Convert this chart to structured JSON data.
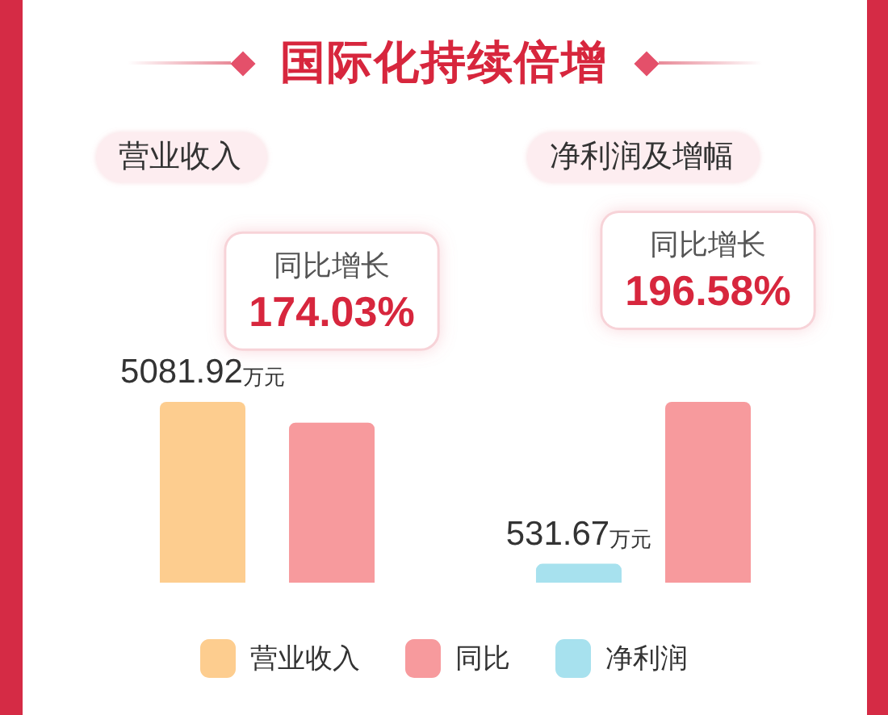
{
  "chart_data": {
    "type": "bar",
    "title": "国际化持续倍增",
    "categories": [
      "营业收入",
      "净利润及增幅"
    ],
    "tick_labels": "x",
    "legend": "bottom",
    "series": [
      {
        "name": "营业收入",
        "color": "#fdcd8f",
        "values": [
          5081.92,
          null
        ],
        "value_labels": [
          "5081.92万元",
          null
        ]
      },
      {
        "name": "同比",
        "color": "#f79a9d",
        "axis": "y2",
        "values": [
          174.03,
          196.58
        ],
        "value_labels": [
          "同比增长\n174.03%",
          "同比增长\n196.58%"
        ]
      },
      {
        "name": "净利润",
        "color": "#a7e1ee",
        "values": [
          null,
          531.67
        ],
        "value_labels": [
          null,
          "531.67万元"
        ]
      }
    ]
  }
}
